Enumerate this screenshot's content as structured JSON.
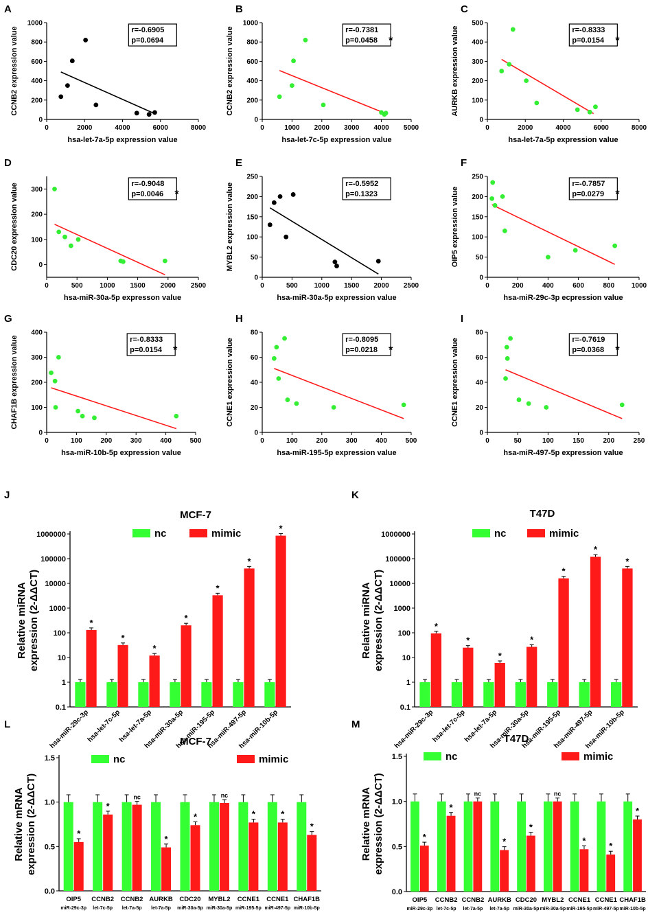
{
  "colors": {
    "green": "#33ff33",
    "red": "#ff1a1a",
    "black": "#000000",
    "greenDot": "#33ee33"
  },
  "chart_data": [
    {
      "id": "A",
      "type": "scatter",
      "letter": "A",
      "xlabel": "hsa-let-7a-5p expression value",
      "ylabel": "CCNB2 expression value",
      "xlim": [
        0,
        8000
      ],
      "ylim": [
        0,
        1000
      ],
      "xticks": [
        "0",
        "2000",
        "4000",
        "6000",
        "8000"
      ],
      "yticks": [
        "0",
        "200",
        "400",
        "600",
        "800",
        "1000"
      ],
      "points": [
        [
          750,
          235
        ],
        [
          1100,
          350
        ],
        [
          1350,
          605
        ],
        [
          2050,
          820
        ],
        [
          2600,
          150
        ],
        [
          4750,
          65
        ],
        [
          5400,
          52
        ],
        [
          5700,
          72
        ]
      ],
      "fit": [
        [
          750,
          490
        ],
        [
          5750,
          55
        ]
      ],
      "r": "r=-0.6905",
      "p": "p=0.0694",
      "significant": false,
      "color": "#000000",
      "lineColor": "#000000"
    },
    {
      "id": "B",
      "type": "scatter",
      "letter": "B",
      "xlabel": "hsa-let-7c-5p expression value",
      "ylabel": "CCNB2 expression value",
      "xlim": [
        0,
        5000
      ],
      "ylim": [
        0,
        1000
      ],
      "xticks": [
        "0",
        "1000",
        "2000",
        "3000",
        "4000",
        "5000"
      ],
      "yticks": [
        "0",
        "200",
        "400",
        "600",
        "800",
        "1000"
      ],
      "points": [
        [
          580,
          235
        ],
        [
          1050,
          605
        ],
        [
          1000,
          350
        ],
        [
          1450,
          820
        ],
        [
          2050,
          150
        ],
        [
          4000,
          72
        ],
        [
          4100,
          52
        ],
        [
          4150,
          65
        ]
      ],
      "fit": [
        [
          580,
          505
        ],
        [
          4150,
          60
        ]
      ],
      "r": "r=-0.7381",
      "p": "p=0.0458",
      "significant": true,
      "color": "#33ee33",
      "lineColor": "#ff1a1a"
    },
    {
      "id": "C",
      "type": "scatter",
      "letter": "C",
      "xlabel": "hsa-let-7a-5p expression value",
      "ylabel": "AURKB expression value",
      "xlim": [
        0,
        8000
      ],
      "ylim": [
        0,
        500
      ],
      "xticks": [
        "0",
        "2000",
        "4000",
        "6000",
        "8000"
      ],
      "yticks": [
        "0",
        "100",
        "200",
        "300",
        "400",
        "500"
      ],
      "points": [
        [
          750,
          250
        ],
        [
          1150,
          285
        ],
        [
          1350,
          465
        ],
        [
          2050,
          200
        ],
        [
          2600,
          85
        ],
        [
          4750,
          50
        ],
        [
          5400,
          38
        ],
        [
          5700,
          65
        ]
      ],
      "fit": [
        [
          750,
          310
        ],
        [
          5600,
          30
        ]
      ],
      "r": "r=-0.8333",
      "p": "p=0.0154",
      "significant": true,
      "color": "#33ee33",
      "lineColor": "#ff1a1a"
    },
    {
      "id": "D",
      "type": "scatter",
      "letter": "D",
      "xlabel": "hsa-miR-30a-5p expresson value",
      "ylabel": "CDC20 expression value",
      "xlim": [
        0,
        2500
      ],
      "ylim": [
        -50,
        350
      ],
      "xticks": [
        "0",
        "500",
        "1000",
        "1500",
        "2000",
        "2500"
      ],
      "yticks": [
        "0",
        "100",
        "200",
        "300"
      ],
      "points": [
        [
          130,
          300
        ],
        [
          200,
          130
        ],
        [
          300,
          110
        ],
        [
          400,
          75
        ],
        [
          520,
          100
        ],
        [
          1220,
          15
        ],
        [
          1260,
          12
        ],
        [
          1950,
          15
        ]
      ],
      "fit": [
        [
          130,
          160
        ],
        [
          1950,
          -40
        ]
      ],
      "r": "r=-0.9048",
      "p": "p=0.0046",
      "significant": true,
      "color": "#33ee33",
      "lineColor": "#ff1a1a"
    },
    {
      "id": "E",
      "type": "scatter",
      "letter": "E",
      "xlabel": "hsa-miR-30a-5p expression value",
      "ylabel": "MYBL2 expression value",
      "xlim": [
        0,
        2500
      ],
      "ylim": [
        0,
        250
      ],
      "xticks": [
        "0",
        "500",
        "1000",
        "1500",
        "2000",
        "2500"
      ],
      "yticks": [
        "0",
        "50",
        "100",
        "150",
        "200",
        "250"
      ],
      "points": [
        [
          130,
          130
        ],
        [
          200,
          185
        ],
        [
          300,
          200
        ],
        [
          400,
          100
        ],
        [
          520,
          205
        ],
        [
          1220,
          38
        ],
        [
          1250,
          28
        ],
        [
          1950,
          40
        ]
      ],
      "fit": [
        [
          130,
          172
        ],
        [
          1950,
          8
        ]
      ],
      "r": "r=-0.5952",
      "p": "p=0.1323",
      "significant": false,
      "color": "#000000",
      "lineColor": "#000000"
    },
    {
      "id": "F",
      "type": "scatter",
      "letter": "F",
      "xlabel": "hsa-miR-29c-3p ecpression value",
      "ylabel": "OIP5 expression value",
      "xlim": [
        0,
        1000
      ],
      "ylim": [
        0,
        250
      ],
      "xticks": [
        "0",
        "200",
        "400",
        "600",
        "800",
        "1000"
      ],
      "yticks": [
        "0",
        "50",
        "100",
        "150",
        "200",
        "250"
      ],
      "points": [
        [
          30,
          195
        ],
        [
          35,
          235
        ],
        [
          50,
          178
        ],
        [
          100,
          200
        ],
        [
          115,
          115
        ],
        [
          400,
          50
        ],
        [
          580,
          67
        ],
        [
          840,
          78
        ]
      ],
      "fit": [
        [
          30,
          180
        ],
        [
          840,
          32
        ]
      ],
      "r": "r=-0.7857",
      "p": "p=0.0279",
      "significant": true,
      "color": "#33ee33",
      "lineColor": "#ff1a1a"
    },
    {
      "id": "G",
      "type": "scatter",
      "letter": "G",
      "xlabel": "hsa-miR-10b-5p expression value",
      "ylabel": "CHAF1B expression value",
      "xlim": [
        0,
        500
      ],
      "ylim": [
        0,
        400
      ],
      "xticks": [
        "0",
        "100",
        "200",
        "300",
        "400",
        "500"
      ],
      "yticks": [
        "0",
        "100",
        "200",
        "300",
        "400"
      ],
      "points": [
        [
          15,
          238
        ],
        [
          28,
          205
        ],
        [
          40,
          300
        ],
        [
          30,
          100
        ],
        [
          105,
          85
        ],
        [
          120,
          65
        ],
        [
          160,
          58
        ],
        [
          435,
          65
        ]
      ],
      "fit": [
        [
          15,
          178
        ],
        [
          435,
          15
        ]
      ],
      "r": "r=-0.8333",
      "p": "p=0.0154",
      "significant": true,
      "color": "#33ee33",
      "lineColor": "#ff1a1a"
    },
    {
      "id": "H",
      "type": "scatter",
      "letter": "H",
      "xlabel": "hsa-miR-195-5p expression value",
      "ylabel": "CCNE1 expression value",
      "xlim": [
        0,
        500
      ],
      "ylim": [
        0,
        80
      ],
      "xticks": [
        "0",
        "100",
        "200",
        "300",
        "400",
        "500"
      ],
      "yticks": [
        "0",
        "20",
        "40",
        "60",
        "80"
      ],
      "points": [
        [
          40,
          59
        ],
        [
          48,
          68
        ],
        [
          55,
          43
        ],
        [
          75,
          75
        ],
        [
          85,
          26
        ],
        [
          115,
          23
        ],
        [
          240,
          20
        ],
        [
          475,
          22
        ]
      ],
      "fit": [
        [
          40,
          51
        ],
        [
          475,
          11
        ]
      ],
      "r": "r=-0.8095",
      "p": "p=0.0218",
      "significant": true,
      "color": "#33ee33",
      "lineColor": "#ff1a1a"
    },
    {
      "id": "I",
      "type": "scatter",
      "letter": "I",
      "xlabel": "hsa-miR-497-5p expression value",
      "ylabel": "CCNE1 expression value",
      "xlim": [
        0,
        250
      ],
      "ylim": [
        0,
        80
      ],
      "xticks": [
        "0",
        "50",
        "100",
        "150",
        "200",
        "250"
      ],
      "yticks": [
        "0",
        "20",
        "40",
        "60",
        "80"
      ],
      "points": [
        [
          30,
          43
        ],
        [
          32,
          68
        ],
        [
          33,
          59
        ],
        [
          38,
          75
        ],
        [
          52,
          26
        ],
        [
          68,
          23
        ],
        [
          97,
          20
        ],
        [
          222,
          22
        ]
      ],
      "fit": [
        [
          30,
          50
        ],
        [
          222,
          11
        ]
      ],
      "r": "r=-0.7619",
      "p": "p=0.0368",
      "significant": true,
      "color": "#33ee33",
      "lineColor": "#ff1a1a"
    },
    {
      "id": "J",
      "type": "bar",
      "scale": "log",
      "letter": "J",
      "title": "MCF-7",
      "ylabel_lines": [
        "Relative miRNA",
        "expression (2-ΔΔCT)"
      ],
      "yticks": [
        "0.1",
        "1",
        "10",
        "100",
        "1000",
        "10000",
        "100000",
        "1000000"
      ],
      "categories": [
        "hsa-miR-29c-3p",
        "hsa-let-7c-5p",
        "hsa-let-7a-5p",
        "hsa-miR-30a-5p",
        "hsa-miR-195-5p",
        "hsa-miR-497-5p",
        "hsa-miR-10b-5p"
      ],
      "series": [
        {
          "name": "nc",
          "values": [
            1,
            1,
            1,
            1,
            1,
            1,
            1
          ]
        },
        {
          "name": "mimic",
          "values": [
            130,
            32,
            12,
            200,
            3300,
            40000,
            850000
          ]
        }
      ],
      "marks": [
        "*",
        "*",
        "*",
        "*",
        "*",
        "*",
        "*"
      ],
      "legend": [
        "nc",
        "mimic"
      ]
    },
    {
      "id": "K",
      "type": "bar",
      "scale": "log",
      "letter": "K",
      "title": "T47D",
      "ylabel_lines": [
        "Relative miRNA",
        "expression (2-ΔΔCT)"
      ],
      "yticks": [
        "0.1",
        "1",
        "10",
        "100",
        "1000",
        "10000",
        "100000",
        "1000000"
      ],
      "categories": [
        "hsa-miR-29c-3p",
        "hsa-let-7c-5p",
        "hsa-let-7a-5p",
        "hsa-miR-30a-5p",
        "hsa-miR-195-5p",
        "hsa-miR-497-5p",
        "hsa-miR-10b-5p"
      ],
      "series": [
        {
          "name": "nc",
          "values": [
            1,
            1,
            1,
            1,
            1,
            1,
            1
          ]
        },
        {
          "name": "mimic",
          "values": [
            95,
            25,
            6,
            27,
            16000,
            120000,
            40000
          ]
        }
      ],
      "marks": [
        "*",
        "*",
        "*",
        "*",
        "*",
        "*",
        "*"
      ],
      "legend": [
        "nc",
        "mimic"
      ]
    },
    {
      "id": "L",
      "type": "bar",
      "scale": "linear",
      "letter": "L",
      "title": "MCF-7",
      "ylabel_lines": [
        "Relative mRNA",
        "expression (2-ΔΔCT)"
      ],
      "ylim": [
        0,
        1.5
      ],
      "yticks": [
        "0.0",
        "0.5",
        "1.0",
        "1.5"
      ],
      "categories": [
        "OIP5",
        "CCNB2",
        "CCNB2",
        "AURKB",
        "CDC20",
        "MYBL2",
        "CCNE1",
        "CCNE1",
        "CHAF1B"
      ],
      "subcategories": [
        "miR-29c-3p",
        "let-7c-5p",
        "let-7a-5p",
        "let-7a-5p",
        "miR-30a-5p",
        "miR-30a-5p",
        "miR-195-5p",
        "miR-497-5p",
        "miR-10b-5p"
      ],
      "series": [
        {
          "name": "nc",
          "values": [
            1.0,
            1.0,
            1.0,
            1.0,
            1.0,
            1.0,
            1.0,
            1.0,
            1.0
          ]
        },
        {
          "name": "mimic",
          "values": [
            0.55,
            0.86,
            0.97,
            0.49,
            0.74,
            0.99,
            0.77,
            0.77,
            0.63
          ]
        }
      ],
      "marks": [
        "*",
        "*",
        "nc",
        "*",
        "*",
        "nc",
        "*",
        "*",
        "*"
      ],
      "legend": [
        "nc",
        "mimic"
      ]
    },
    {
      "id": "M",
      "type": "bar",
      "scale": "linear",
      "letter": "M",
      "title": "T47D",
      "ylabel_lines": [
        "Relative mRNA",
        "expression (2-ΔΔCT)"
      ],
      "ylim": [
        0,
        1.5
      ],
      "yticks": [
        "0.0",
        "0.5",
        "1.0",
        "1.5"
      ],
      "categories": [
        "OIP5",
        "CCNB2",
        "CCNB2",
        "AURKB",
        "CDC20",
        "MYBL2",
        "CCNE1",
        "CCNE1",
        "CHAF1B"
      ],
      "subcategories": [
        "miR-29c-3p",
        "let-7c-5p",
        "let-7a-5p",
        "let-7a-5p",
        "miR-30a-5p",
        "miR-30a-5p",
        "miR-195-5p",
        "miR-497-5p",
        "miR-10b-5p"
      ],
      "series": [
        {
          "name": "nc",
          "values": [
            1.0,
            1.0,
            1.0,
            1.0,
            1.0,
            1.0,
            1.0,
            1.0,
            1.0
          ]
        },
        {
          "name": "mimic",
          "values": [
            0.51,
            0.84,
            1.0,
            0.46,
            0.62,
            1.0,
            0.47,
            0.41,
            0.8
          ]
        }
      ],
      "marks": [
        "*",
        "*",
        "nc",
        "*",
        "*",
        "nc",
        "*",
        "*",
        "*"
      ],
      "legend": [
        "nc",
        "mimic"
      ]
    }
  ]
}
